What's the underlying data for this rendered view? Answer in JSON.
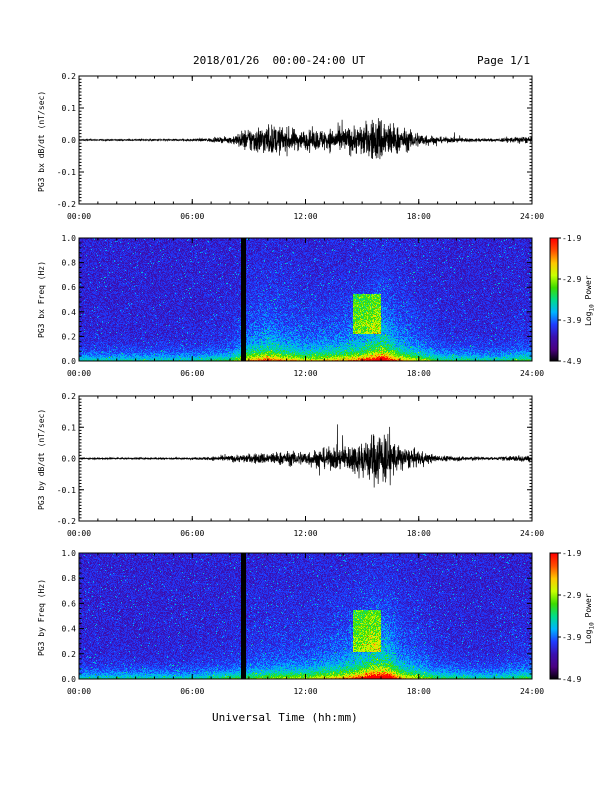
{
  "header": {
    "date_range": "2018/01/26  00:00-24:00 UT",
    "page": "Page 1/1"
  },
  "xaxis_title": "Universal Time (hh:mm)",
  "colors": {
    "trace": "#000000",
    "axes": "#000000",
    "colormap": [
      "#000000",
      "#4b0082",
      "#3a10b0",
      "#1e3cff",
      "#00b4ff",
      "#00dc8c",
      "#3cdc00",
      "#c8ff00",
      "#ffc800",
      "#ff5000",
      "#ff0000"
    ]
  },
  "chart_data": [
    {
      "type": "line",
      "ylabel": "PG3 bx dB/dt (nT/sec)",
      "xlim": [
        "00:00",
        "24:00"
      ],
      "xticks": [
        "00:00",
        "06:00",
        "12:00",
        "18:00",
        "24:00"
      ],
      "ylim": [
        -0.2,
        0.2
      ],
      "yticks": [
        "-0.2",
        "-0.1",
        "0.0",
        "0.1",
        "0.2"
      ],
      "activity_envelope": [
        {
          "t": "00:00",
          "amp": 0.002
        },
        {
          "t": "06:00",
          "amp": 0.003
        },
        {
          "t": "08:00",
          "amp": 0.01
        },
        {
          "t": "09:00",
          "amp": 0.04
        },
        {
          "t": "10:00",
          "amp": 0.05
        },
        {
          "t": "12:00",
          "amp": 0.03
        },
        {
          "t": "14:00",
          "amp": 0.04
        },
        {
          "t": "15:00",
          "amp": 0.05
        },
        {
          "t": "16:00",
          "amp": 0.08
        },
        {
          "t": "17:00",
          "amp": 0.04
        },
        {
          "t": "19:00",
          "amp": 0.01
        },
        {
          "t": "22:00",
          "amp": 0.004
        },
        {
          "t": "23:30",
          "amp": 0.012
        },
        {
          "t": "24:00",
          "amp": 0.008
        }
      ]
    },
    {
      "type": "heatmap",
      "ylabel": "PG3 bx Freq (Hz)",
      "xlim": [
        "00:00",
        "24:00"
      ],
      "xticks": [
        "00:00",
        "06:00",
        "12:00",
        "18:00",
        "24:00"
      ],
      "ylim": [
        0.0,
        1.0
      ],
      "yticks": [
        "0.0",
        "0.2",
        "0.4",
        "0.6",
        "0.8",
        "1.0"
      ],
      "colorbar": {
        "label": "Log10 Power",
        "label_main": "Log",
        "label_sub": "10",
        "label_end": " Power",
        "range": [
          -4.9,
          -1.9
        ],
        "ticks": [
          "-1.9",
          "-2.9",
          "-3.9",
          "-4.9"
        ]
      },
      "data_gap": "08:40"
    },
    {
      "type": "line",
      "ylabel": "PG3 by dB/dt (nT/sec)",
      "xlim": [
        "00:00",
        "24:00"
      ],
      "xticks": [
        "00:00",
        "06:00",
        "12:00",
        "18:00",
        "24:00"
      ],
      "ylim": [
        -0.2,
        0.2
      ],
      "yticks": [
        "-0.2",
        "-0.1",
        "0.0",
        "0.1",
        "0.2"
      ],
      "activity_envelope": [
        {
          "t": "00:00",
          "amp": 0.002
        },
        {
          "t": "06:00",
          "amp": 0.003
        },
        {
          "t": "08:00",
          "amp": 0.01
        },
        {
          "t": "10:00",
          "amp": 0.02
        },
        {
          "t": "12:00",
          "amp": 0.025
        },
        {
          "t": "14:00",
          "amp": 0.04
        },
        {
          "t": "15:00",
          "amp": 0.06
        },
        {
          "t": "16:00",
          "amp": 0.1
        },
        {
          "t": "17:00",
          "amp": 0.04
        },
        {
          "t": "19:00",
          "amp": 0.01
        },
        {
          "t": "22:00",
          "amp": 0.004
        },
        {
          "t": "23:30",
          "amp": 0.012
        },
        {
          "t": "24:00",
          "amp": 0.008
        }
      ]
    },
    {
      "type": "heatmap",
      "ylabel": "PG3 by Freq (Hz)",
      "xlim": [
        "00:00",
        "24:00"
      ],
      "xticks": [
        "00:00",
        "06:00",
        "12:00",
        "18:00",
        "24:00"
      ],
      "ylim": [
        0.0,
        1.0
      ],
      "yticks": [
        "0.0",
        "0.2",
        "0.4",
        "0.6",
        "0.8",
        "1.0"
      ],
      "colorbar": {
        "label": "Log10 Power",
        "label_main": "Log",
        "label_sub": "10",
        "label_end": " Power",
        "range": [
          -4.9,
          -1.9
        ],
        "ticks": [
          "-1.9",
          "-2.9",
          "-3.9",
          "-4.9"
        ]
      },
      "data_gap": "08:40"
    }
  ]
}
